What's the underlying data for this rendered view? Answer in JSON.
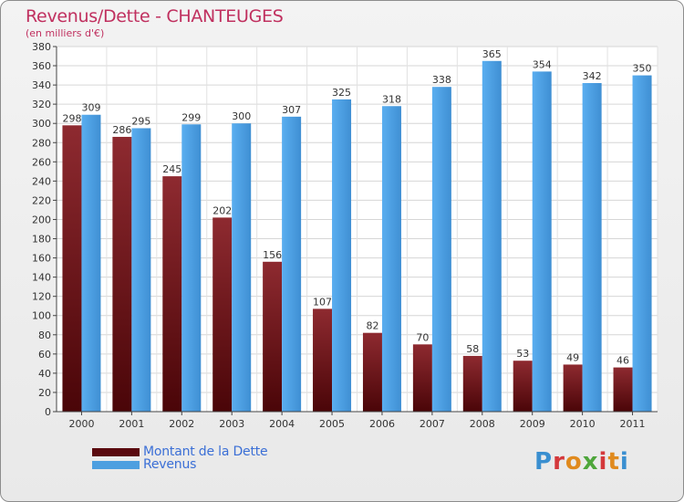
{
  "header": {
    "title": "Revenus/Dette - CHANTEUGES",
    "subtitle": "(en milliers d'€)"
  },
  "colors": {
    "dette": "#7a1a1f",
    "revenus": "#4d9fe0",
    "title": "#c0305f",
    "legend_text": "#3b6fd6"
  },
  "legend": [
    {
      "label": "Montant de la Dette",
      "swatch_color": "#5a0a0f"
    },
    {
      "label": "Revenus",
      "swatch_color": "#4d9fe0"
    }
  ],
  "logo": {
    "text": "Proxiti"
  },
  "chart_data": {
    "type": "bar",
    "title": "Revenus/Dette - CHANTEUGES",
    "subtitle": "(en milliers d'€)",
    "categories": [
      "2000",
      "2001",
      "2002",
      "2003",
      "2004",
      "2005",
      "2006",
      "2007",
      "2008",
      "2009",
      "2010",
      "2011"
    ],
    "series": [
      {
        "name": "Montant de la Dette",
        "values": [
          298,
          286,
          245,
          202,
          156,
          107,
          82,
          70,
          58,
          53,
          49,
          46
        ]
      },
      {
        "name": "Revenus",
        "values": [
          309,
          295,
          299,
          300,
          307,
          325,
          318,
          338,
          365,
          354,
          342,
          350
        ]
      }
    ],
    "ylim": [
      0,
      380
    ],
    "yticks": [
      0,
      20,
      40,
      60,
      80,
      100,
      120,
      140,
      160,
      180,
      200,
      220,
      240,
      260,
      280,
      300,
      320,
      340,
      360,
      380
    ],
    "grid": true,
    "legend_position": "bottom-left"
  }
}
